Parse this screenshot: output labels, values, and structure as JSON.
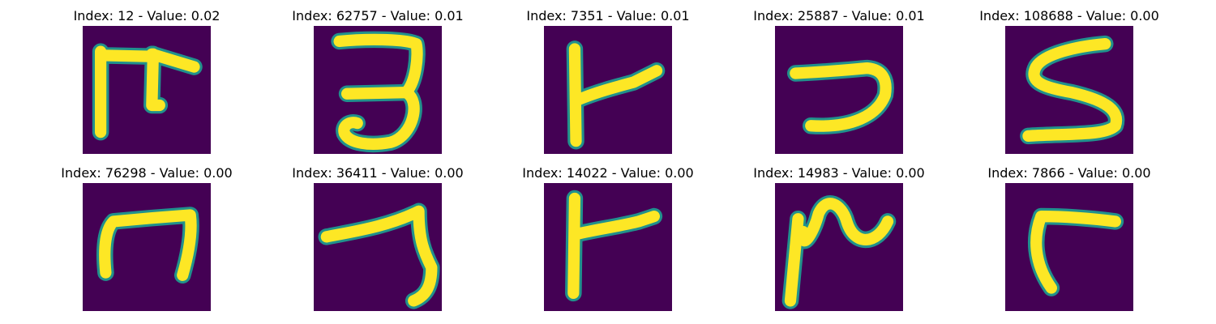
{
  "colors": {
    "background": "#440154",
    "stroke_mid": "#21918c",
    "stroke": "#fde725"
  },
  "panels": [
    {
      "title": "Index: 12 - Value: 0.02",
      "image": "handwritten-symbol-image"
    },
    {
      "title": "Index: 62757 - Value: 0.01",
      "image": "handwritten-symbol-image"
    },
    {
      "title": "Index: 7351 - Value: 0.01",
      "image": "handwritten-symbol-image"
    },
    {
      "title": "Index: 25887 - Value: 0.01",
      "image": "handwritten-symbol-image"
    },
    {
      "title": "Index: 108688 - Value: 0.00",
      "image": "handwritten-symbol-image"
    },
    {
      "title": "Index: 76298 - Value: 0.00",
      "image": "handwritten-symbol-image"
    },
    {
      "title": "Index: 36411 - Value: 0.00",
      "image": "handwritten-symbol-image"
    },
    {
      "title": "Index: 14022 - Value: 0.00",
      "image": "handwritten-symbol-image"
    },
    {
      "title": "Index: 14983 - Value: 0.00",
      "image": "handwritten-symbol-image"
    },
    {
      "title": "Index: 7866 - Value: 0.00",
      "image": "handwritten-symbol-image"
    }
  ]
}
